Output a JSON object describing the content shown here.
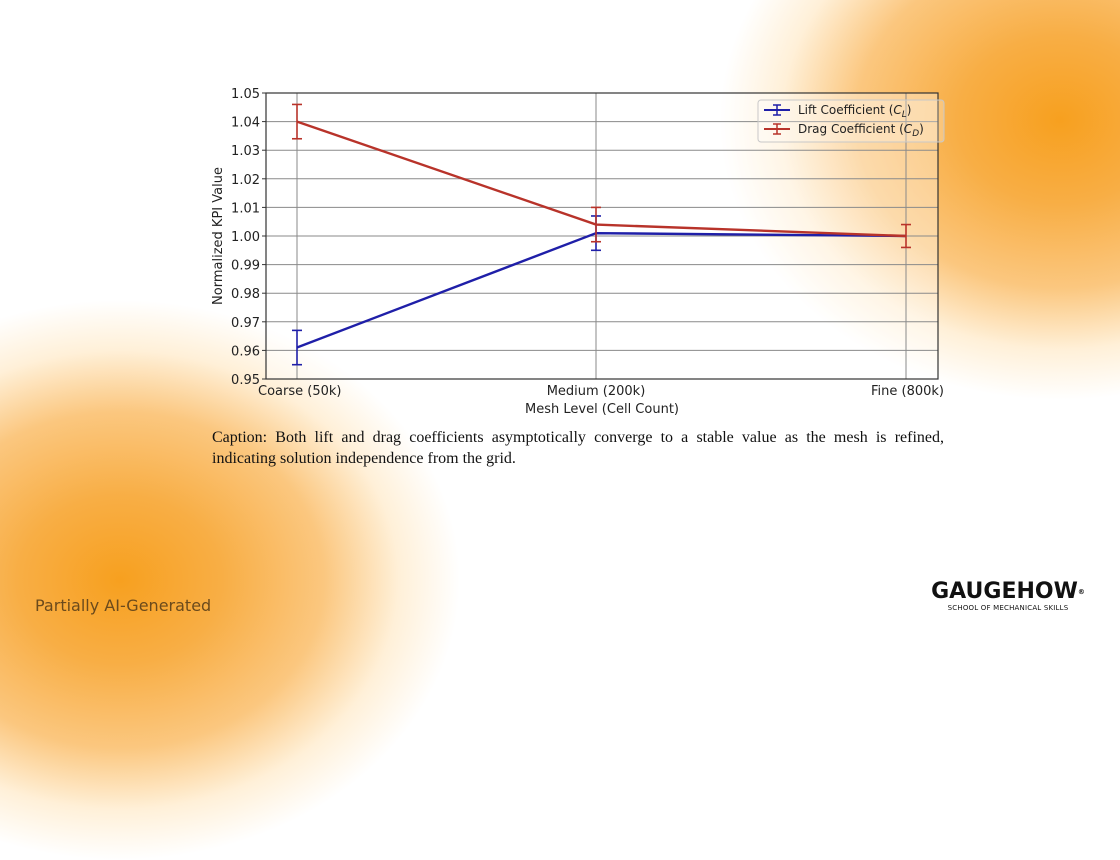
{
  "chart_data": {
    "type": "line",
    "title": "",
    "xlabel": "Mesh Level (Cell Count)",
    "ylabel": "Normalized KPI Value",
    "categories": [
      "Coarse (50k)",
      "Medium (200k)",
      "Fine (800k)"
    ],
    "ylim": [
      0.95,
      1.05
    ],
    "yticks": [
      "0.95",
      "0.96",
      "0.97",
      "0.98",
      "0.99",
      "1.00",
      "1.01",
      "1.02",
      "1.03",
      "1.04",
      "1.05"
    ],
    "grid": true,
    "legend_position": "upper right",
    "series": [
      {
        "name": "Lift Coefficient (C_L)",
        "label_main": "Lift Coefficient (",
        "label_sym": "C",
        "label_sub": "L",
        "color": "#1f1fa8",
        "values": [
          0.961,
          1.001,
          1.0
        ],
        "errors": [
          0.006,
          0.006,
          0.0
        ]
      },
      {
        "name": "Drag Coefficient (C_D)",
        "label_main": "Drag Coefficient (",
        "label_sym": "C",
        "label_sub": "D",
        "color": "#b8332a",
        "values": [
          1.04,
          1.004,
          1.0
        ],
        "errors": [
          0.006,
          0.006,
          0.004
        ]
      }
    ]
  },
  "caption": "Caption: Both lift and drag coefficients asymptotically converge to a stable value as the mesh is refined, indicating solution independence from the grid.",
  "footer": {
    "note": "Partially AI-Generated",
    "logo_main": "GAUGEHOW",
    "logo_reg": "®",
    "logo_sub": "SCHOOL OF MECHANICAL SKILLS"
  },
  "colors": {
    "accent_orange": "#f7a01f",
    "lift_blue": "#1f1fa8",
    "drag_red": "#b8332a"
  }
}
